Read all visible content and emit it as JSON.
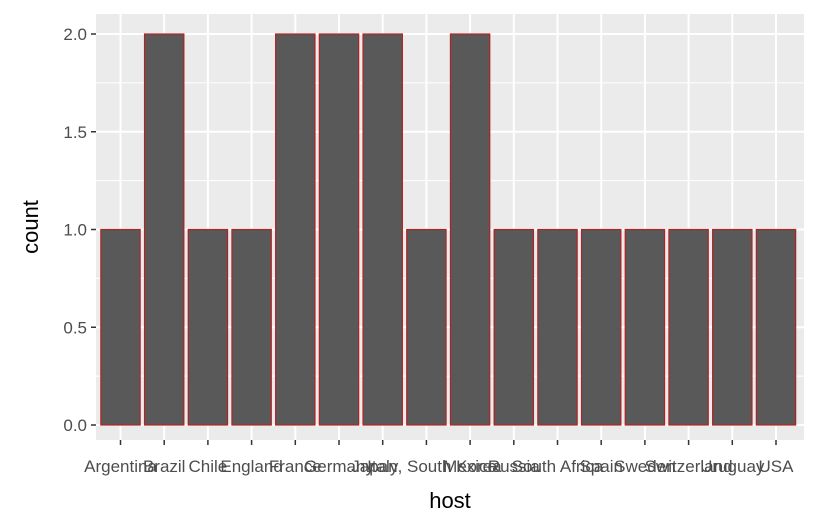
{
  "chart_data": {
    "type": "bar",
    "xlabel": "host",
    "ylabel": "count",
    "categories": [
      "Argentina",
      "Brazil",
      "Chile",
      "England",
      "France",
      "Germany",
      "Italy",
      "Japan, South Korea",
      "Mexico",
      "Russia",
      "South Africa",
      "Spain",
      "Sweden",
      "Switzerland",
      "Uruguay",
      "USA"
    ],
    "values": [
      1,
      2,
      1,
      1,
      2,
      2,
      2,
      1,
      2,
      1,
      1,
      1,
      1,
      1,
      1,
      1
    ],
    "ylim": [
      0,
      2
    ],
    "yticks": [
      "0.0",
      "0.5",
      "1.0",
      "1.5",
      "2.0"
    ],
    "grid": true,
    "colors": {
      "fill": "#595959",
      "outline": "#b22222",
      "panel": "#ebebeb",
      "grid": "#ffffff"
    }
  }
}
